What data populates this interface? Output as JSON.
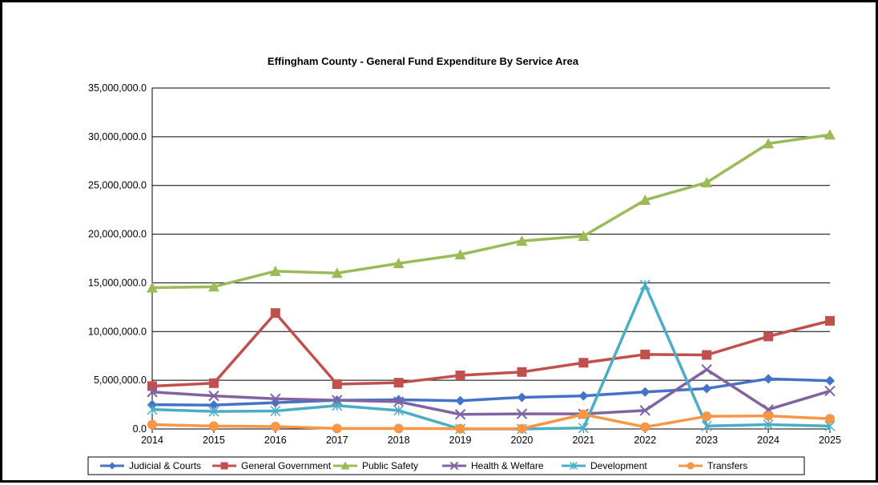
{
  "chart_data": {
    "type": "line",
    "title": "Effingham County - General Fund Expenditure By Service Area",
    "x": [
      "2014",
      "2015",
      "2016",
      "2017",
      "2018",
      "2019",
      "2020",
      "2021",
      "2022",
      "2023",
      "2024",
      "2025"
    ],
    "ylim": [
      0,
      35000000
    ],
    "yticks": [
      0,
      5000000,
      10000000,
      15000000,
      20000000,
      25000000,
      30000000,
      35000000
    ],
    "ytick_labels": [
      "0.0",
      "5,000,000.0",
      "10,000,000.0",
      "15,000,000.0",
      "20,000,000.0",
      "25,000,000.0",
      "30,000,000.0",
      "35,000,000.0"
    ],
    "grid": true,
    "legend_position": "bottom",
    "series": [
      {
        "name": "Judicial & Courts",
        "color": "#4472C4",
        "marker": "diamond",
        "values": [
          2500000,
          2450000,
          2700000,
          2950000,
          3000000,
          2900000,
          3250000,
          3400000,
          3800000,
          4150000,
          5150000,
          4950000
        ]
      },
      {
        "name": "General Government",
        "color": "#C0504D",
        "marker": "square",
        "values": [
          4400000,
          4700000,
          11900000,
          4600000,
          4750000,
          5500000,
          5850000,
          6800000,
          7650000,
          7600000,
          9500000,
          11100000
        ]
      },
      {
        "name": "Public Safety",
        "color": "#9BBB59",
        "marker": "triangle",
        "values": [
          14500000,
          14600000,
          16200000,
          16000000,
          17000000,
          17900000,
          19300000,
          19800000,
          23500000,
          25300000,
          29300000,
          30200000
        ]
      },
      {
        "name": "Health & Welfare",
        "color": "#8064A2",
        "marker": "x",
        "values": [
          3800000,
          3400000,
          3100000,
          2950000,
          2800000,
          1500000,
          1550000,
          1550000,
          1900000,
          6100000,
          2000000,
          3900000
        ]
      },
      {
        "name": "Development",
        "color": "#4BACC6",
        "marker": "asterisk",
        "values": [
          2000000,
          1800000,
          1850000,
          2400000,
          1900000,
          0,
          0,
          100000,
          14800000,
          300000,
          450000,
          300000
        ]
      },
      {
        "name": "Transfers",
        "color": "#F79646",
        "marker": "circle",
        "values": [
          450000,
          300000,
          250000,
          50000,
          50000,
          30000,
          30000,
          1500000,
          200000,
          1300000,
          1350000,
          1050000
        ]
      }
    ]
  }
}
